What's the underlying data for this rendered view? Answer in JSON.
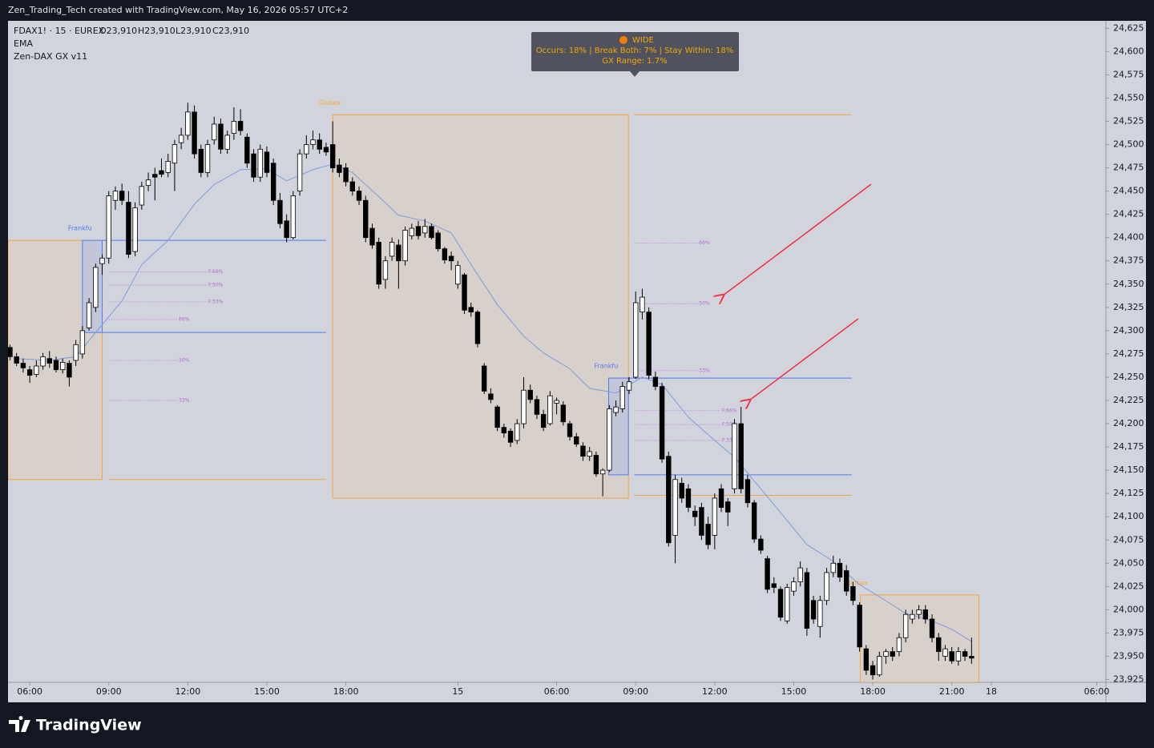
{
  "header": "Zen_Trading_Tech created with TradingView.com, May 16, 2026 05:57 UTC+2",
  "brand": "TradingView",
  "chart_data": {
    "type": "candlestick",
    "symbol": "FDAX1! · 15 · EUREX",
    "ohlc_labels": [
      "O23,910",
      "H23,910",
      "L23,910",
      "C23,910"
    ],
    "study": "Zen-DAX GX v11",
    "up_color": "#ffffff",
    "down_color": "#000000",
    "wick_color": "#000000",
    "xlim": [
      -3.3,
      163.4
    ],
    "ylim": [
      23922,
      24633
    ],
    "xticks": [
      {
        "value": 0,
        "label": "06:00"
      },
      {
        "value": 12,
        "label": "09:00"
      },
      {
        "value": 24,
        "label": "12:00"
      },
      {
        "value": 36,
        "label": "15:00"
      },
      {
        "value": 48,
        "label": "18:00"
      },
      {
        "value": 65,
        "label": "15"
      },
      {
        "value": 80,
        "label": "06:00"
      },
      {
        "value": 92,
        "label": "09:00"
      },
      {
        "value": 104,
        "label": "12:00"
      },
      {
        "value": 116,
        "label": "15:00"
      },
      {
        "value": 128,
        "label": "18:00"
      },
      {
        "value": 140,
        "label": "21:00"
      },
      {
        "value": 146,
        "label": "18"
      },
      {
        "value": 162,
        "label": "06:00"
      }
    ],
    "yticks": [
      {
        "value": 23925,
        "label": "23,925"
      },
      {
        "value": 23950,
        "label": "23,950"
      },
      {
        "value": 23975,
        "label": "23,975"
      },
      {
        "value": 24000,
        "label": "24,000"
      },
      {
        "value": 24025,
        "label": "24,025"
      },
      {
        "value": 24050,
        "label": "24,050"
      },
      {
        "value": 24075,
        "label": "24,075"
      },
      {
        "value": 24100,
        "label": "24,100"
      },
      {
        "value": 24125,
        "label": "24,125"
      },
      {
        "value": 24150,
        "label": "24,150"
      },
      {
        "value": 24175,
        "label": "24,175"
      },
      {
        "value": 24200,
        "label": "24,200"
      },
      {
        "value": 24225,
        "label": "24,225"
      },
      {
        "value": 24250,
        "label": "24,250"
      },
      {
        "value": 24275,
        "label": "24,275"
      },
      {
        "value": 24300,
        "label": "24,300"
      },
      {
        "value": 24325,
        "label": "24,325"
      },
      {
        "value": 24350,
        "label": "24,350"
      },
      {
        "value": 24375,
        "label": "24,375"
      },
      {
        "value": 24400,
        "label": "24,400"
      },
      {
        "value": 24425,
        "label": "24,425"
      },
      {
        "value": 24450,
        "label": "24,450"
      },
      {
        "value": 24475,
        "label": "24,475"
      },
      {
        "value": 24500,
        "label": "24,500"
      },
      {
        "value": 24525,
        "label": "24,525"
      },
      {
        "value": 24550,
        "label": "24,550"
      },
      {
        "value": 24575,
        "label": "24,575"
      },
      {
        "value": 24600,
        "label": "24,600"
      },
      {
        "value": 24625,
        "label": "24,625"
      }
    ],
    "x": [
      -3,
      -2,
      -1,
      0,
      1,
      2,
      3,
      4,
      5,
      6,
      7,
      8,
      9,
      10,
      11,
      12,
      13,
      14,
      15,
      16,
      17,
      18,
      19,
      20,
      21,
      22,
      23,
      24,
      25,
      26,
      27,
      28,
      29,
      30,
      31,
      32,
      33,
      34,
      35,
      36,
      37,
      38,
      39,
      40,
      41,
      42,
      43,
      44,
      45,
      46,
      47,
      48,
      49,
      50,
      51,
      52,
      53,
      54,
      55,
      56,
      57,
      58,
      59,
      60,
      61,
      62,
      63,
      64,
      65,
      66,
      67,
      68,
      69,
      70,
      71,
      72,
      73,
      74,
      75,
      76,
      77,
      78,
      79,
      80,
      81,
      82,
      83,
      84,
      85,
      86,
      87,
      88,
      89,
      90,
      91,
      92,
      93,
      94,
      95,
      96,
      97,
      98,
      99,
      100,
      101,
      102,
      103,
      104,
      105,
      106,
      107,
      108,
      109,
      110,
      111,
      112,
      113,
      114,
      115,
      116,
      117,
      118,
      119,
      120,
      121,
      122,
      123,
      124,
      125,
      126,
      127,
      128,
      129,
      130,
      131,
      132,
      133,
      134,
      135,
      136,
      137,
      138,
      139,
      140,
      141,
      142,
      143
    ],
    "open": [
      24282,
      24272,
      24265,
      24258,
      24253,
      24262,
      24270,
      24268,
      24258,
      24265,
      24268,
      24275,
      24303,
      24325,
      24372,
      24378,
      24440,
      24450,
      24438,
      24385,
      24435,
      24456,
      24468,
      24472,
      24470,
      24480,
      24502,
      24510,
      24535,
      24495,
      24470,
      24505,
      24522,
      24495,
      24512,
      24525,
      24508,
      24490,
      24465,
      24492,
      24480,
      24440,
      24418,
      24400,
      24450,
      24490,
      24500,
      24505,
      24497,
      24500,
      24478,
      24475,
      24460,
      24450,
      24440,
      24410,
      24395,
      24355,
      24380,
      24392,
      24375,
      24402,
      24412,
      24405,
      24412,
      24405,
      24388,
      24380,
      24350,
      24360,
      24325,
      24320,
      24262,
      24232,
      24218,
      24196,
      24192,
      24182,
      24200,
      24236,
      24226,
      24210,
      24200,
      24222,
      24220,
      24200,
      24186,
      24176,
      24165,
      24166,
      24146,
      24150,
      24212,
      24216,
      24236,
      24250,
      24320,
      24320,
      24250,
      24240,
      24165,
      24080,
      24136,
      24130,
      24106,
      24110,
      24092,
      24080,
      24130,
      24116,
      24130,
      24200,
      24140,
      24115,
      24076,
      24055,
      24028,
      24022,
      23988,
      24020,
      24030,
      24040,
      24010,
      23982,
      24010,
      24040,
      24050,
      24042,
      24025,
      24005,
      23958,
      23940,
      23930,
      23950,
      23955,
      23955,
      23970,
      23990,
      23995,
      24000,
      23990,
      23970,
      23950,
      23955,
      23945,
      23955,
      23950
    ],
    "high": [
      24285,
      24276,
      24270,
      24262,
      24268,
      24276,
      24278,
      24272,
      24270,
      24268,
      24290,
      24305,
      24335,
      24372,
      24382,
      24450,
      24455,
      24458,
      24450,
      24438,
      24460,
      24470,
      24475,
      24485,
      24490,
      24505,
      24518,
      24545,
      24542,
      24500,
      24505,
      24530,
      24528,
      24515,
      24540,
      24538,
      24512,
      24495,
      24500,
      24498,
      24485,
      24448,
      24425,
      24450,
      24495,
      24510,
      24515,
      24512,
      24502,
      24525,
      24485,
      24480,
      24465,
      24455,
      24445,
      24415,
      24400,
      24380,
      24400,
      24398,
      24412,
      24415,
      24418,
      24420,
      24415,
      24408,
      24390,
      24385,
      24375,
      24362,
      24330,
      24322,
      24265,
      24238,
      24220,
      24200,
      24195,
      24205,
      24250,
      24242,
      24230,
      24215,
      24235,
      24228,
      24224,
      24203,
      24190,
      24180,
      24175,
      24170,
      24152,
      24220,
      24225,
      24245,
      24250,
      24342,
      24345,
      24325,
      24256,
      24244,
      24170,
      24145,
      24142,
      24135,
      24112,
      24115,
      24100,
      24125,
      24135,
      24120,
      24205,
      24218,
      24145,
      24118,
      24080,
      24058,
      24035,
      24025,
      24028,
      24035,
      24052,
      24045,
      24015,
      24015,
      24045,
      24058,
      24055,
      24048,
      24030,
      24008,
      23962,
      23945,
      23955,
      23958,
      23960,
      23975,
      24000,
      24000,
      24005,
      24005,
      23995,
      23975,
      23962,
      23960,
      23960,
      23958,
      23970
    ],
    "low": [
      24268,
      24262,
      24255,
      24244,
      24250,
      24258,
      24260,
      24255,
      24254,
      24240,
      24262,
      24270,
      24300,
      24320,
      24360,
      24372,
      24430,
      24435,
      24378,
      24380,
      24430,
      24450,
      24440,
      24465,
      24465,
      24450,
      24495,
      24505,
      24485,
      24465,
      24465,
      24500,
      24490,
      24490,
      24505,
      24510,
      24475,
      24460,
      24460,
      24465,
      24435,
      24410,
      24395,
      24398,
      24445,
      24485,
      24495,
      24490,
      24488,
      24470,
      24465,
      24455,
      24445,
      24435,
      24395,
      24388,
      24345,
      24345,
      24375,
      24345,
      24370,
      24398,
      24398,
      24400,
      24398,
      24385,
      24372,
      24365,
      24345,
      24318,
      24315,
      24282,
      24232,
      24222,
      24192,
      24185,
      24175,
      24178,
      24195,
      24222,
      24205,
      24192,
      24198,
      24210,
      24198,
      24182,
      24175,
      24160,
      24160,
      24143,
      24122,
      24148,
      24208,
      24212,
      24232,
      24248,
      24312,
      24248,
      24236,
      24158,
      24068,
      24050,
      24115,
      24105,
      24090,
      24075,
      24065,
      24065,
      24105,
      24090,
      24125,
      24125,
      24110,
      24072,
      24060,
      24018,
      24018,
      23988,
      23985,
      24015,
      24025,
      23972,
      23985,
      23970,
      24005,
      24035,
      24030,
      24015,
      24005,
      23955,
      23930,
      23925,
      23928,
      23942,
      23945,
      23950,
      23965,
      23985,
      23990,
      23985,
      23965,
      23945,
      23945,
      23942,
      23940,
      23945,
      23942
    ],
    "close": [
      24272,
      24265,
      24260,
      24252,
      24262,
      24272,
      24265,
      24258,
      24266,
      24250,
      24285,
      24300,
      24330,
      24368,
      24378,
      24445,
      24450,
      24440,
      24382,
      24432,
      24455,
      24462,
      24465,
      24468,
      24482,
      24500,
      24510,
      24535,
      24490,
      24470,
      24500,
      24522,
      24495,
      24510,
      24525,
      24515,
      24480,
      24465,
      24495,
      24470,
      24440,
      24415,
      24400,
      24445,
      24490,
      24500,
      24505,
      24495,
      24492,
      24475,
      24470,
      24460,
      24450,
      24440,
      24400,
      24392,
      24350,
      24375,
      24395,
      24375,
      24408,
      24410,
      24402,
      24412,
      24400,
      24388,
      24376,
      24375,
      24370,
      24322,
      24320,
      24286,
      24235,
      24226,
      24196,
      24190,
      24180,
      24200,
      24236,
      24226,
      24210,
      24196,
      24230,
      24225,
      24202,
      24186,
      24178,
      24165,
      24170,
      24146,
      24150,
      24216,
      24218,
      24240,
      24245,
      24330,
      24336,
      24252,
      24240,
      24162,
      24072,
      24140,
      24120,
      24110,
      24100,
      24080,
      24070,
      24120,
      24110,
      24105,
      24200,
      24130,
      24115,
      24076,
      24064,
      24022,
      24024,
      23992,
      24024,
      24030,
      24045,
      23980,
      23990,
      24010,
      24040,
      24050,
      24035,
      24020,
      24010,
      23960,
      23935,
      23930,
      23950,
      23955,
      23950,
      23970,
      23995,
      23995,
      24000,
      23990,
      23970,
      23955,
      23958,
      23945,
      23955,
      23950,
      23948
    ],
    "ema": {
      "name": "EMA",
      "color": "#7f9be0",
      "x": [
        -2,
        3,
        7,
        10,
        14,
        17,
        21,
        25,
        28,
        32,
        36,
        39,
        43,
        46,
        49,
        53,
        56,
        60,
        64,
        67,
        71,
        75,
        78,
        82,
        85,
        89,
        93,
        96,
        100,
        104,
        107,
        111,
        115,
        118,
        122,
        126,
        129,
        133,
        137,
        140,
        143
      ],
      "values": [
        24270,
        24268,
        24272,
        24298,
        24332,
        24371,
        24397,
        24436,
        24457,
        24473,
        24474,
        24461,
        24473,
        24479,
        24470,
        24444,
        24424,
        24418,
        24405,
        24371,
        24328,
        24294,
        24276,
        24259,
        24238,
        24233,
        24250,
        24242,
        24207,
        24182,
        24164,
        24130,
        24096,
        24070,
        24052,
        24027,
        24014,
        23996,
        23988,
        23979,
        23966
      ]
    },
    "zones": [
      {
        "x": [
          -3.3,
          11
        ],
        "y": [
          24140,
          24397
        ],
        "fill": "#d8d0cb",
        "stroke": "#f7a53b"
      },
      {
        "x": [
          46,
          90.9
        ],
        "y": [
          24120,
          24532
        ],
        "fill": "#d8d0cb",
        "stroke": "#f7a53b",
        "label": "Globex"
      },
      {
        "x": [
          126.1,
          144.1
        ],
        "y": [
          23922,
          24016
        ],
        "fill": "#d8d0cb",
        "stroke": "#f7a53b",
        "label": "Globex"
      },
      {
        "x": [
          8,
          11
        ],
        "y": [
          24298,
          24397
        ],
        "fill": "#c3c6d9",
        "stroke": "#4f7bea",
        "label": "Frankfu"
      },
      {
        "x": [
          87.9,
          90.9
        ],
        "y": [
          24145,
          24249
        ],
        "fill": "#c3c6d9",
        "stroke": "#4f7bea",
        "label": "Frankfu"
      }
    ],
    "levels": [
      {
        "x": [
          11,
          45
        ],
        "y": 24397,
        "color": "#4f7bea"
      },
      {
        "x": [
          11,
          45
        ],
        "y": 24298,
        "color": "#4f7bea"
      },
      {
        "x": [
          12,
          45
        ],
        "y": 24140,
        "color": "#f7a53b"
      },
      {
        "x": [
          91.8,
          124.8
        ],
        "y": 24532,
        "color": "#f7a53b"
      },
      {
        "x": [
          90.9,
          124.8
        ],
        "y": 24249,
        "color": "#4f7bea"
      },
      {
        "x": [
          91.8,
          124.8
        ],
        "y": 24145,
        "color": "#4f7bea"
      },
      {
        "x": [
          91.8,
          124.8
        ],
        "y": 24123,
        "color": "#f7a53b"
      },
      {
        "x": [
          12,
          27
        ],
        "y": 24363,
        "color": "#b26ad0",
        "dash": true,
        "label": "F:66%"
      },
      {
        "x": [
          12,
          27
        ],
        "y": 24349,
        "color": "#b26ad0",
        "dash": true,
        "label": "F:50%"
      },
      {
        "x": [
          12,
          27
        ],
        "y": 24331,
        "color": "#b26ad0",
        "dash": true,
        "label": "F:33%"
      },
      {
        "x": [
          12,
          22.5
        ],
        "y": 24312,
        "color": "#b26ad0",
        "dash": true,
        "label": "66%"
      },
      {
        "x": [
          12,
          22.5
        ],
        "y": 24268,
        "color": "#b26ad0",
        "dash": true,
        "label": "50%"
      },
      {
        "x": [
          12,
          22.5
        ],
        "y": 24225,
        "color": "#b26ad0",
        "dash": true,
        "label": "33%"
      },
      {
        "x": [
          91.8,
          101.5
        ],
        "y": 24394,
        "color": "#b26ad0",
        "dash": true,
        "label": "66%"
      },
      {
        "x": [
          91.8,
          101.5
        ],
        "y": 24329,
        "color": "#b26ad0",
        "dash": true,
        "label": "50%"
      },
      {
        "x": [
          91.8,
          101.5
        ],
        "y": 24257,
        "color": "#b26ad0",
        "dash": true,
        "label": "33%"
      },
      {
        "x": [
          91.8,
          105
        ],
        "y": 24214,
        "color": "#b26ad0",
        "dash": true,
        "label": "F:66%"
      },
      {
        "x": [
          91.8,
          105
        ],
        "y": 24199,
        "color": "#b26ad0",
        "dash": true,
        "label": "F:50%"
      },
      {
        "x": [
          91.8,
          105
        ],
        "y": 24182,
        "color": "#b26ad0",
        "dash": true,
        "label": "F:33%"
      }
    ],
    "tooltip": {
      "title": "WIDE",
      "lines": [
        "Occurs: 18% | Break Both: 7% | Stay Within: 18%",
        "GX Range: 1.7%"
      ]
    }
  }
}
